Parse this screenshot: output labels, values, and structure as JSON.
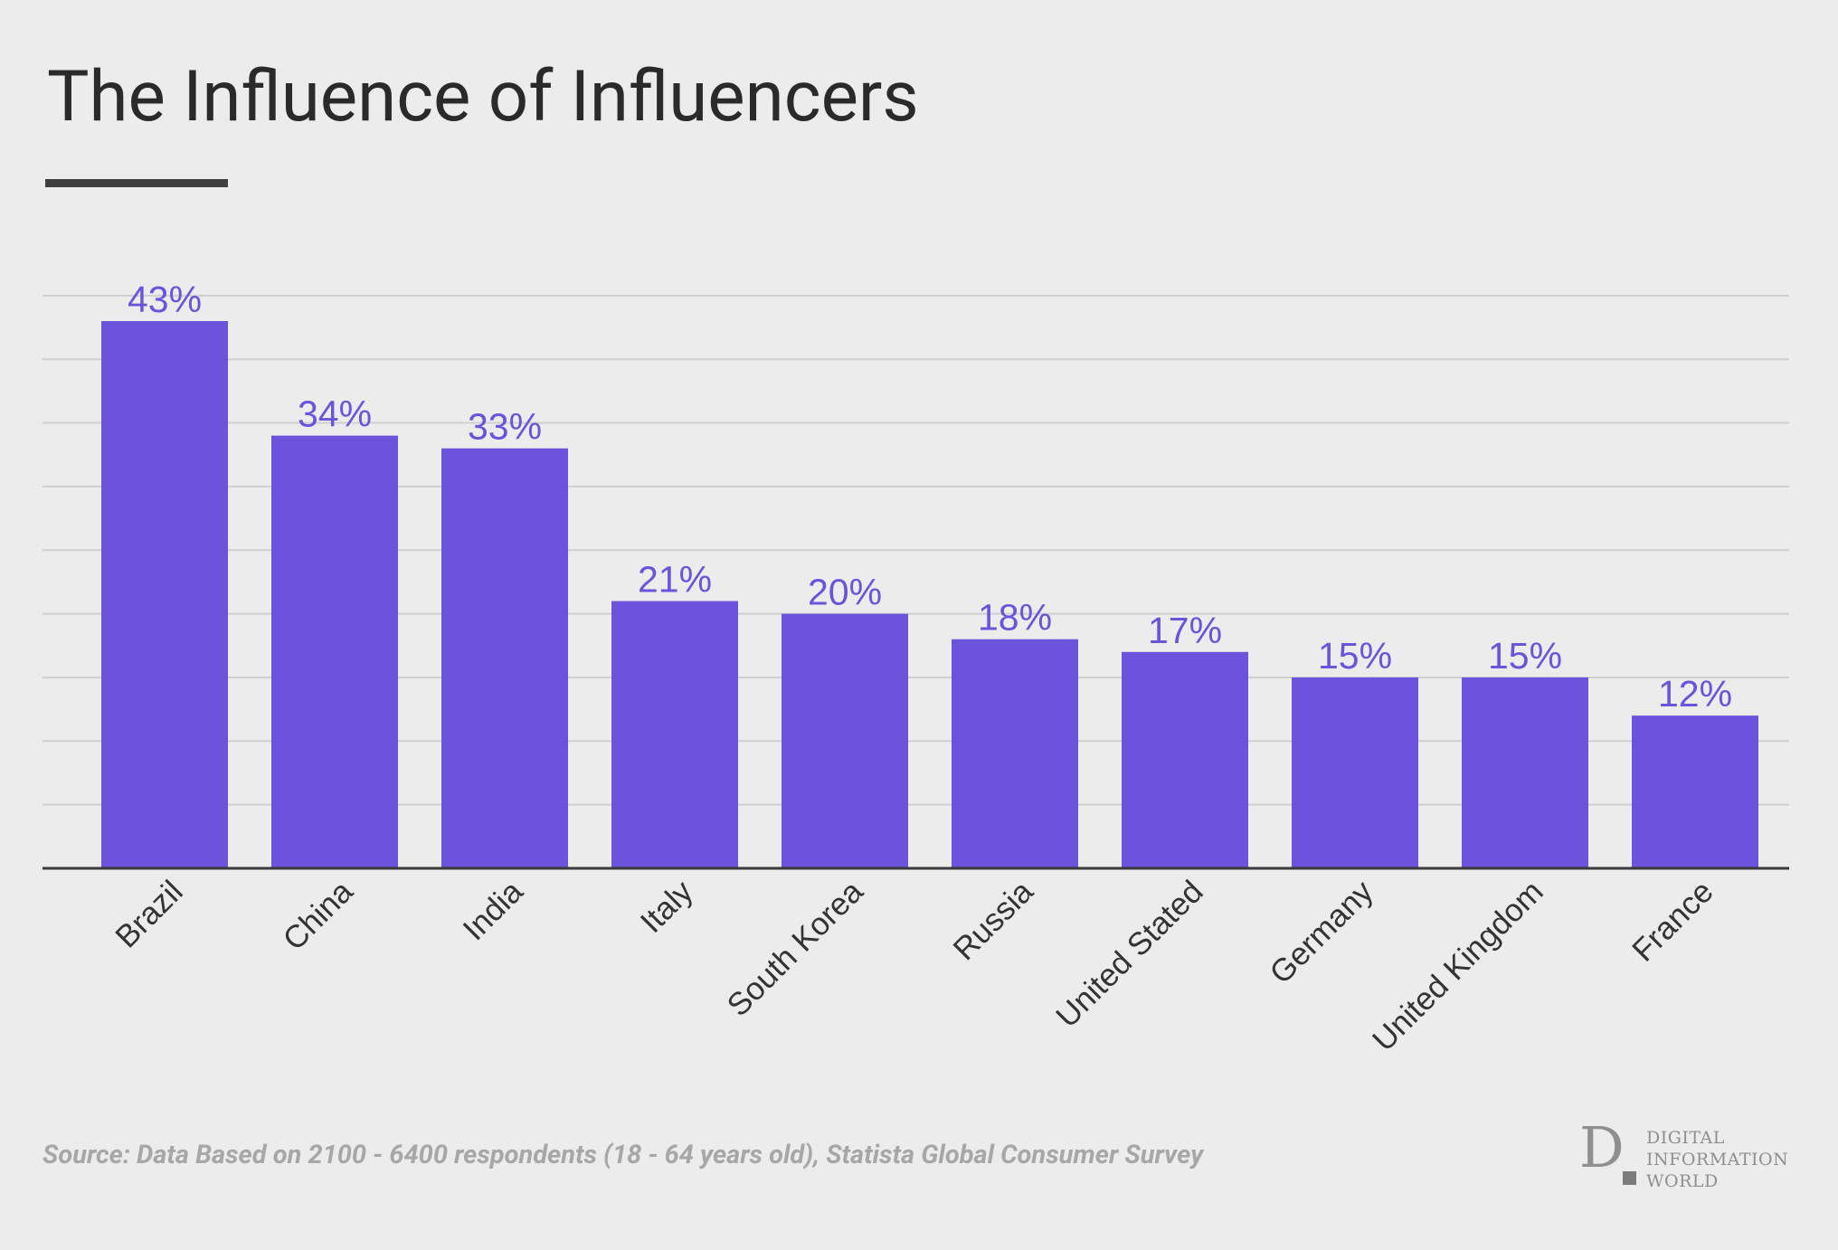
{
  "title": "The Influence of Influencers",
  "source": "Source: Data Based on 2100 - 6400 respondents (18 - 64 years old), Statista Global Consumer Survey",
  "logo": {
    "mark": "D",
    "lines": [
      "DIGITAL",
      "INFORMATION",
      "WORLD"
    ]
  },
  "colors": {
    "bar": "#6c53dc",
    "value_label": "#6c53dc",
    "grid": "#cfcfcf",
    "axis": "#3a3a3a",
    "tick_label": "#333333",
    "title": "#2a2a2a",
    "source": "#a7a7a7"
  },
  "chart_data": {
    "type": "bar",
    "title": "The Influence of Influencers",
    "xlabel": "",
    "ylabel": "",
    "categories": [
      "Brazil",
      "China",
      "India",
      "Italy",
      "South Korea",
      "Russia",
      "United Stated",
      "Germany",
      "United Kingdom",
      "France"
    ],
    "values": [
      43,
      34,
      33,
      21,
      20,
      18,
      17,
      15,
      15,
      12
    ],
    "value_labels": [
      "43%",
      "34%",
      "33%",
      "21%",
      "20%",
      "18%",
      "17%",
      "15%",
      "15%",
      "12%"
    ],
    "ylim": [
      0,
      45
    ],
    "grid": true,
    "legend": "none"
  }
}
